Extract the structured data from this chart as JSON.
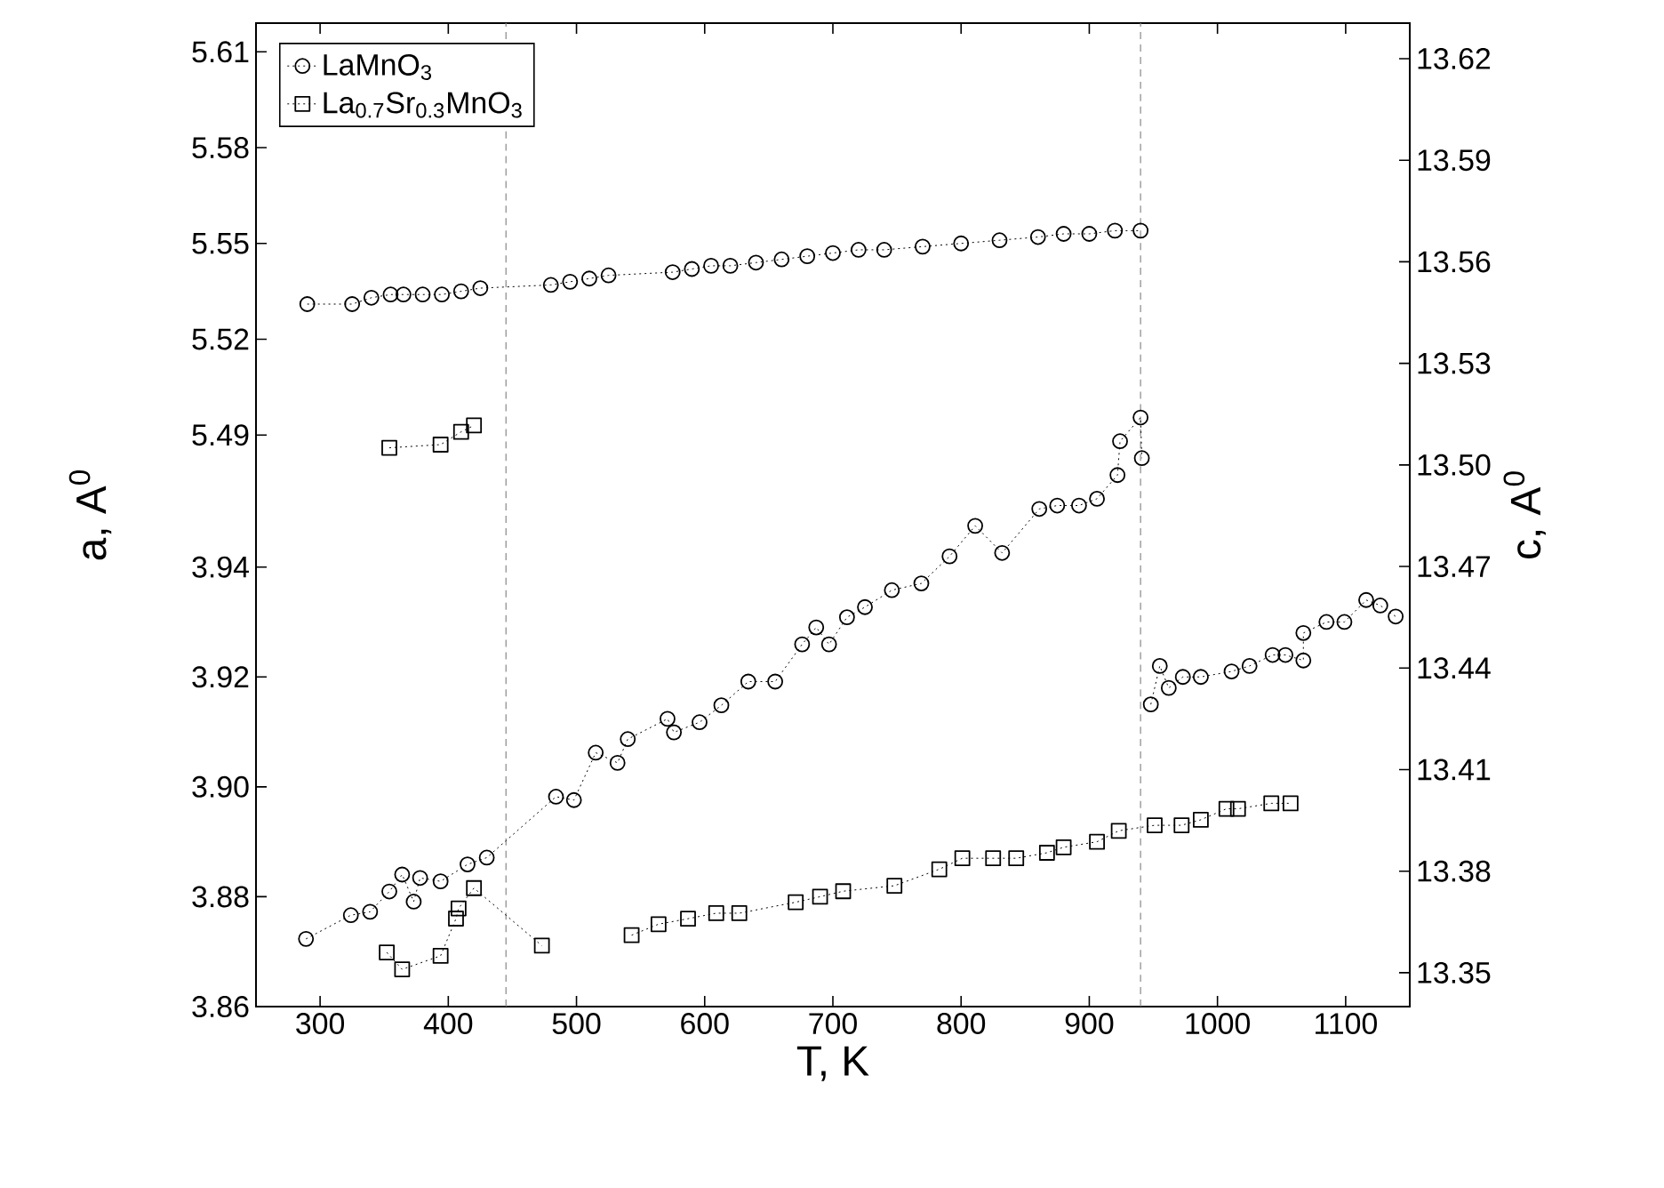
{
  "chart_data": {
    "type": "line",
    "xlabel": "T, K",
    "ylabel": "a, A$^{0}$",
    "y2label": "c, A$^{0}$",
    "xlim": [
      250,
      1150
    ],
    "xticks": [
      300,
      400,
      500,
      600,
      700,
      800,
      900,
      1000,
      1100
    ],
    "ylim": [
      3.86,
      4.039
    ],
    "yticks": [
      3.86,
      3.88,
      {
        "value": 3.9,
        "label": "3.90"
      },
      3.92,
      3.94
    ],
    "y3lim": [
      5.311,
      5.619
    ],
    "y3ticks": [
      5.49,
      5.52,
      5.55,
      5.58,
      5.61
    ],
    "y2lim": [
      13.34,
      13.6305
    ],
    "y2ticks": [
      13.35,
      13.38,
      13.41,
      13.44,
      13.47,
      {
        "value": 13.5,
        "label": "13.50"
      },
      13.53,
      13.56,
      13.59,
      13.62
    ],
    "legend": "top left",
    "grid": false,
    "ref_lines": [
      {
        "axis": "x",
        "value": 445,
        "color": "#888888",
        "line_style": "dashed"
      },
      {
        "axis": "x",
        "value": 940,
        "color": "#888888",
        "line_style": "dashed"
      }
    ],
    "series": [
      {
        "name": "LaMnO$_{3}$",
        "color": "#000000",
        "axis": "y3",
        "marker": "circle",
        "line_style": "dotted",
        "x": [
          290,
          325,
          340,
          355,
          365,
          380,
          395,
          410,
          425,
          480,
          495,
          510,
          525,
          575,
          590,
          605,
          620,
          640,
          660,
          680,
          700,
          720,
          740,
          770,
          800,
          830,
          860,
          880,
          900,
          920,
          940
        ],
        "values": [
          5.531,
          5.531,
          5.533,
          5.534,
          5.534,
          5.534,
          5.534,
          5.535,
          5.536,
          5.537,
          5.538,
          5.539,
          5.54,
          5.541,
          5.542,
          5.543,
          5.543,
          5.544,
          5.545,
          5.546,
          5.547,
          5.548,
          5.548,
          5.549,
          5.55,
          5.551,
          5.552,
          5.553,
          5.553,
          5.554,
          5.554
        ]
      },
      {
        "color": "#000000",
        "axis": "y2",
        "marker": "circle",
        "line_style": "dotted",
        "x": [
          289,
          324,
          339,
          354,
          364,
          373,
          378,
          394,
          415,
          430,
          484,
          498,
          515,
          532,
          540,
          571,
          576,
          596,
          613,
          634,
          655,
          676,
          687,
          697,
          711,
          725,
          746,
          769,
          791,
          811,
          832,
          861,
          875,
          892,
          906,
          922,
          924,
          940,
          941
        ],
        "values": [
          13.36,
          13.367,
          13.368,
          13.374,
          13.379,
          13.371,
          13.378,
          13.377,
          13.382,
          13.384,
          13.402,
          13.401,
          13.415,
          13.412,
          13.419,
          13.425,
          13.421,
          13.424,
          13.429,
          13.436,
          13.436,
          13.447,
          13.452,
          13.447,
          13.455,
          13.458,
          13.463,
          13.465,
          13.473,
          13.482,
          13.474,
          13.487,
          13.488,
          13.488,
          13.49,
          13.497,
          13.507,
          13.514,
          13.502
        ]
      },
      {
        "color": "#000000",
        "axis": "y",
        "marker": "circle",
        "line_style": "dotted",
        "x": [
          948,
          955,
          962,
          973,
          987,
          1011,
          1025,
          1043,
          1053,
          1067,
          1067,
          1085,
          1099,
          1116,
          1127,
          1139
        ],
        "values": [
          3.915,
          3.922,
          3.918,
          3.92,
          3.92,
          3.921,
          3.922,
          3.924,
          3.924,
          3.923,
          3.928,
          3.93,
          3.93,
          3.934,
          3.933,
          3.931
        ]
      },
      {
        "name": "La$_{0.7}$Sr$_{0.3}$MnO$_{3}$",
        "color": "#000000",
        "axis": "y3",
        "marker": "square",
        "line_style": "dotted",
        "x": [
          354,
          394,
          410,
          420
        ],
        "values": [
          5.486,
          5.487,
          5.491,
          5.493
        ]
      },
      {
        "color": "#000000",
        "axis": "y2",
        "marker": "square",
        "line_style": "dotted",
        "x": [
          352,
          364,
          394,
          406,
          408,
          420,
          473
        ],
        "values": [
          13.356,
          13.351,
          13.355,
          13.366,
          13.369,
          13.375,
          13.358
        ]
      },
      {
        "color": "#000000",
        "axis": "y",
        "marker": "square",
        "line_style": "dotted",
        "x": [
          543,
          564,
          587,
          609,
          627,
          671,
          690,
          708,
          748,
          783,
          801,
          825,
          843,
          867,
          880,
          906,
          923,
          951,
          972,
          987,
          1007,
          1016,
          1042,
          1057
        ],
        "values": [
          3.873,
          3.875,
          3.876,
          3.877,
          3.877,
          3.879,
          3.88,
          3.881,
          3.882,
          3.885,
          3.887,
          3.887,
          3.887,
          3.888,
          3.889,
          3.89,
          3.892,
          3.893,
          3.893,
          3.894,
          3.896,
          3.896,
          3.897,
          3.897
        ]
      }
    ]
  }
}
